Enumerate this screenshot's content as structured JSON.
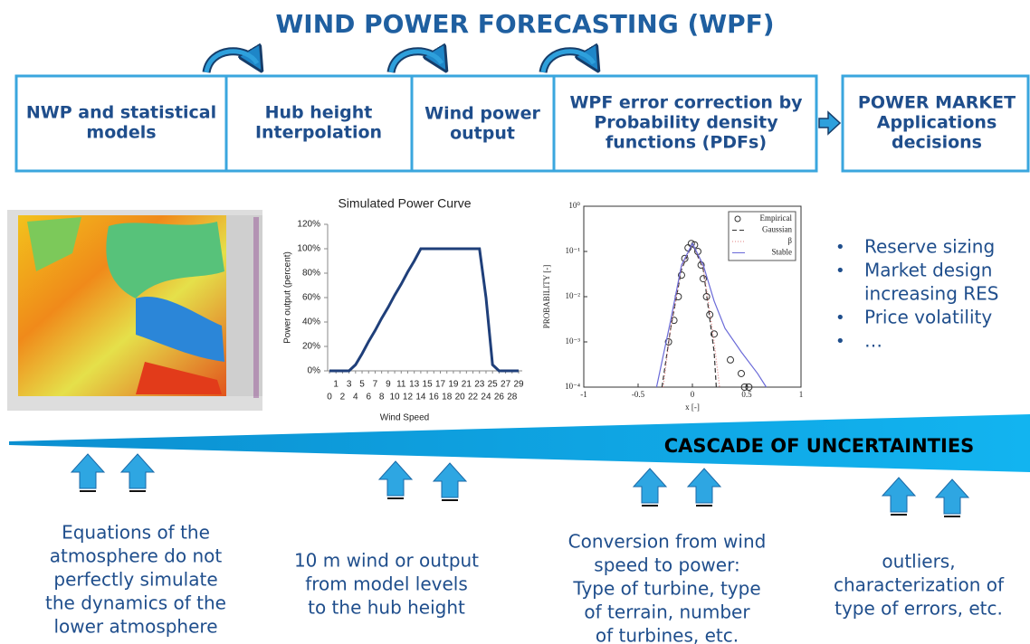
{
  "header": {
    "title": "WIND POWER FORECASTING (WPF)"
  },
  "boxes": [
    {
      "lines": [
        "NWP and statistical",
        "models"
      ]
    },
    {
      "lines": [
        "Hub height",
        "Interpolation"
      ]
    },
    {
      "lines": [
        "Wind power",
        "output"
      ]
    },
    {
      "lines": [
        "WPF error correction by",
        "Probability density",
        "functions (PDFs)"
      ]
    },
    {
      "lines": [
        "POWER MARKET",
        "Applications",
        "decisions"
      ]
    }
  ],
  "power_curve": {
    "type": "line",
    "title": "Simulated Power Curve",
    "x_label": "Wind Speed",
    "y_label": "Power output (percent)",
    "color": "#1f3f7a",
    "x": [
      0,
      1,
      2,
      3,
      4,
      5,
      6,
      7,
      8,
      9,
      10,
      11,
      12,
      13,
      14,
      15,
      16,
      17,
      18,
      19,
      20,
      21,
      22,
      23,
      24,
      25,
      26,
      27,
      28,
      29
    ],
    "values": [
      0,
      0,
      0,
      0,
      5,
      14,
      24,
      33,
      43,
      52,
      62,
      71,
      81,
      90,
      100,
      100,
      100,
      100,
      100,
      100,
      100,
      100,
      100,
      100,
      60,
      5,
      0,
      0,
      0,
      0
    ],
    "xlim": [
      0,
      29
    ],
    "xticks": [
      0,
      1,
      2,
      3,
      4,
      5,
      6,
      7,
      8,
      9,
      10,
      11,
      12,
      13,
      14,
      15,
      16,
      17,
      18,
      19,
      20,
      21,
      22,
      23,
      24,
      25,
      26,
      27,
      28,
      29
    ],
    "ylim": [
      0,
      120
    ],
    "yticks": [
      {
        "value": 0,
        "label": "0%"
      },
      {
        "value": 20,
        "label": "20%"
      },
      {
        "value": 40,
        "label": "40%"
      },
      {
        "value": 60,
        "label": "60%"
      },
      {
        "value": 80,
        "label": "80%"
      },
      {
        "value": 100,
        "label": "100%"
      },
      {
        "value": 120,
        "label": "120%"
      }
    ],
    "grid": false
  },
  "pdf_chart": {
    "type": "scatter",
    "x_label": "x [-]",
    "y_label": "PROBABILITY [-]",
    "log_y": true,
    "xlim": [
      -1,
      1
    ],
    "xticks": [
      -1,
      -0.5,
      0,
      0.5,
      1
    ],
    "ylim": [
      0.0001,
      1
    ],
    "yticks": [
      {
        "value": 0.0001,
        "label": "10⁻⁴"
      },
      {
        "value": 0.001,
        "label": "10⁻³"
      },
      {
        "value": 0.01,
        "label": "10⁻²"
      },
      {
        "value": 0.1,
        "label": "10⁻¹"
      },
      {
        "value": 1,
        "label": "10⁰"
      }
    ],
    "legend": "top-right",
    "series": [
      {
        "name": "Empirical",
        "color": "#333333",
        "style": "circle",
        "x": [
          -0.22,
          -0.17,
          -0.13,
          -0.1,
          -0.07,
          -0.04,
          -0.01,
          0.02,
          0.05,
          0.08,
          0.1,
          0.13,
          0.16,
          0.2,
          0.35,
          0.45,
          0.48,
          0.52
        ],
        "values": [
          0.001,
          0.003,
          0.01,
          0.03,
          0.07,
          0.12,
          0.15,
          0.14,
          0.1,
          0.05,
          0.025,
          0.01,
          0.004,
          0.0015,
          0.0004,
          0.0002,
          0.0001,
          0.0001
        ]
      },
      {
        "name": "Gaussian",
        "color": "#333333",
        "style": "dashed",
        "x": [
          -0.28,
          -0.2,
          -0.1,
          0,
          0.1,
          0.2,
          0.22
        ],
        "values": [
          0.0001,
          0.002,
          0.04,
          0.15,
          0.04,
          0.0006,
          0.0001
        ]
      },
      {
        "name": "β",
        "color": "#e08080",
        "style": "dotted",
        "x": [
          -0.27,
          -0.2,
          -0.1,
          0,
          0.1,
          0.2,
          0.25
        ],
        "values": [
          0.0001,
          0.002,
          0.045,
          0.15,
          0.045,
          0.001,
          0.0001
        ]
      },
      {
        "name": "Stable",
        "color": "#6a6ad8",
        "style": "solid",
        "x": [
          -0.33,
          -0.2,
          -0.1,
          0,
          0.1,
          0.2,
          0.3,
          0.45,
          0.6,
          0.68
        ],
        "values": [
          0.0001,
          0.003,
          0.05,
          0.15,
          0.05,
          0.008,
          0.002,
          0.0006,
          0.0002,
          0.0001
        ]
      }
    ]
  },
  "bullets": [
    {
      "lines": [
        "Reserve sizing"
      ]
    },
    {
      "lines": [
        "Market design",
        "increasing RES"
      ]
    },
    {
      "lines": [
        "Price volatility"
      ]
    },
    {
      "lines": [
        "…"
      ]
    }
  ],
  "bullet_mark": "•",
  "cascade": "CASCADE  OF UNCERTAINTIES",
  "captions": [
    {
      "lines": [
        "Equations of the",
        "atmosphere do not",
        "perfectly simulate",
        "the dynamics of the",
        "lower atmosphere"
      ]
    },
    {
      "lines": [
        "10 m wind or output",
        "from model levels",
        "to the hub height"
      ]
    },
    {
      "lines": [
        "Conversion from wind",
        "speed to power:",
        "Type of turbine, type",
        "of terrain, number",
        "of turbines, etc."
      ]
    },
    {
      "lines": [
        "outliers,",
        "characterization of",
        "type of errors, etc."
      ]
    }
  ]
}
